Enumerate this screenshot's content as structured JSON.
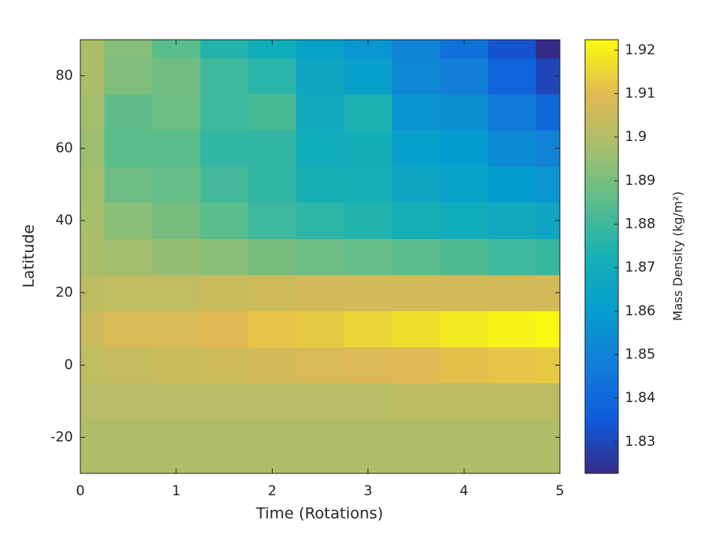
{
  "chart_data": {
    "type": "heatmap",
    "xlabel": "Time (Rotations)",
    "ylabel": "Latitude",
    "colorbar_label": "Mass Density (kg/m²)",
    "colormap": "parula",
    "x": [
      0,
      0.5,
      1,
      1.5,
      2,
      2.5,
      3,
      3.5,
      4,
      4.5,
      5
    ],
    "y": [
      -30,
      -20,
      -10,
      0,
      10,
      20,
      30,
      40,
      50,
      60,
      70,
      80,
      90
    ],
    "z": [
      [
        1.9,
        1.9,
        1.9,
        1.9,
        1.9,
        1.9,
        1.9,
        1.9,
        1.9,
        1.9,
        1.9
      ],
      [
        1.9,
        1.9,
        1.9,
        1.9,
        1.9,
        1.9,
        1.9,
        1.9,
        1.9,
        1.9,
        1.9
      ],
      [
        1.901,
        1.901,
        1.901,
        1.901,
        1.901,
        1.901,
        1.901,
        1.902,
        1.902,
        1.902,
        1.902
      ],
      [
        1.903,
        1.904,
        1.905,
        1.906,
        1.907,
        1.908,
        1.909,
        1.91,
        1.911,
        1.912,
        1.913
      ],
      [
        1.905,
        1.908,
        1.908,
        1.91,
        1.912,
        1.913,
        1.915,
        1.917,
        1.919,
        1.921,
        1.922
      ],
      [
        1.902,
        1.903,
        1.903,
        1.905,
        1.906,
        1.907,
        1.907,
        1.907,
        1.907,
        1.907,
        1.907
      ],
      [
        1.899,
        1.897,
        1.895,
        1.893,
        1.89,
        1.888,
        1.887,
        1.885,
        1.883,
        1.88,
        1.879
      ],
      [
        1.898,
        1.893,
        1.89,
        1.885,
        1.88,
        1.877,
        1.875,
        1.872,
        1.87,
        1.868,
        1.866
      ],
      [
        1.897,
        1.888,
        1.887,
        1.881,
        1.878,
        1.873,
        1.872,
        1.866,
        1.864,
        1.86,
        1.858
      ],
      [
        1.896,
        1.885,
        1.885,
        1.878,
        1.878,
        1.87,
        1.871,
        1.862,
        1.86,
        1.853,
        1.85
      ],
      [
        1.897,
        1.886,
        1.888,
        1.88,
        1.882,
        1.868,
        1.874,
        1.857,
        1.855,
        1.846,
        1.84
      ],
      [
        1.899,
        1.891,
        1.889,
        1.88,
        1.876,
        1.866,
        1.862,
        1.852,
        1.848,
        1.838,
        1.83
      ],
      [
        1.899,
        1.892,
        1.885,
        1.875,
        1.87,
        1.863,
        1.858,
        1.85,
        1.843,
        1.833,
        1.823
      ]
    ],
    "xlim": [
      0,
      5
    ],
    "ylim": [
      -30,
      90
    ],
    "xticks": [
      0,
      1,
      2,
      3,
      4,
      5
    ],
    "yticks": [
      -20,
      0,
      20,
      40,
      60,
      80
    ],
    "clim": [
      1.8227,
      1.9224
    ],
    "cticks": [
      1.83,
      1.84,
      1.85,
      1.86,
      1.87,
      1.88,
      1.89,
      1.9,
      1.91,
      1.92
    ]
  }
}
